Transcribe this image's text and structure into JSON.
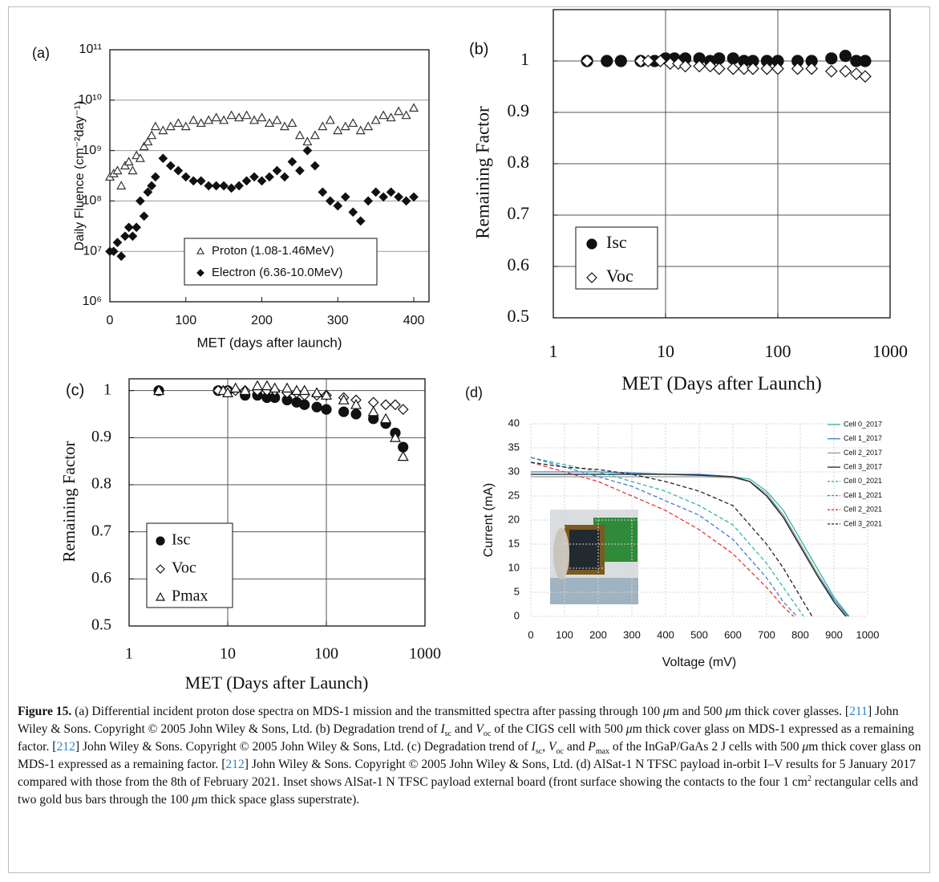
{
  "chart_data": [
    {
      "type": "scatter",
      "panel": "(a)",
      "xlabel": "MET (days after launch)",
      "ylabel": "Daily Fluence (cm⁻²day⁻¹)",
      "xlim": [
        0,
        420
      ],
      "xticks": [
        0,
        100,
        200,
        300,
        400
      ],
      "ylim": [
        1000000.0,
        100000000000.0
      ],
      "ylog": true,
      "yticks": [
        {
          "value": 1000000.0,
          "label": "10⁶"
        },
        {
          "value": 10000000.0,
          "label": "10⁷"
        },
        {
          "value": 100000000.0,
          "label": "10⁸"
        },
        {
          "value": 1000000000.0,
          "label": "10⁹"
        },
        {
          "value": 10000000000.0,
          "label": "10¹⁰"
        },
        {
          "value": 100000000000.0,
          "label": "10¹¹"
        }
      ],
      "grid": "y",
      "legend": "lower-center",
      "series": [
        {
          "name": "Proton (1.08-1.46MeV)",
          "marker": "triangle-open",
          "color": "#333333",
          "x": [
            0,
            5,
            10,
            15,
            20,
            25,
            30,
            35,
            40,
            45,
            50,
            55,
            60,
            70,
            80,
            90,
            100,
            110,
            120,
            130,
            140,
            150,
            160,
            170,
            180,
            190,
            200,
            210,
            220,
            230,
            240,
            250,
            260,
            270,
            280,
            290,
            300,
            310,
            320,
            330,
            340,
            350,
            360,
            370,
            380,
            390,
            400
          ],
          "values": [
            300000000.0,
            350000000.0,
            400000000.0,
            200000000.0,
            500000000.0,
            600000000.0,
            400000000.0,
            800000000.0,
            700000000.0,
            1200000000.0,
            1500000000.0,
            2000000000.0,
            3000000000.0,
            2500000000.0,
            3000000000.0,
            3500000000.0,
            3000000000.0,
            4000000000.0,
            3500000000.0,
            4000000000.0,
            4500000000.0,
            4000000000.0,
            5000000000.0,
            4500000000.0,
            5000000000.0,
            4000000000.0,
            4500000000.0,
            3500000000.0,
            4000000000.0,
            3000000000.0,
            3500000000.0,
            2000000000.0,
            1500000000.0,
            2000000000.0,
            3000000000.0,
            4000000000.0,
            2500000000.0,
            3000000000.0,
            3500000000.0,
            2500000000.0,
            3000000000.0,
            4000000000.0,
            5000000000.0,
            4500000000.0,
            6000000000.0,
            5000000000.0,
            7000000000.0
          ]
        },
        {
          "name": "Electron (6.36-10.0MeV)",
          "marker": "diamond",
          "color": "#111111",
          "x": [
            0,
            5,
            10,
            15,
            20,
            25,
            30,
            35,
            40,
            45,
            50,
            55,
            60,
            70,
            80,
            90,
            100,
            110,
            120,
            130,
            140,
            150,
            160,
            170,
            180,
            190,
            200,
            210,
            220,
            230,
            240,
            250,
            260,
            270,
            280,
            290,
            300,
            310,
            320,
            330,
            340,
            350,
            360,
            370,
            380,
            390,
            400
          ],
          "values": [
            10000000.0,
            10000000.0,
            15000000.0,
            8000000.0,
            20000000.0,
            30000000.0,
            20000000.0,
            30000000.0,
            100000000.0,
            50000000.0,
            150000000.0,
            200000000.0,
            300000000.0,
            700000000.0,
            500000000.0,
            400000000.0,
            300000000.0,
            250000000.0,
            250000000.0,
            200000000.0,
            200000000.0,
            200000000.0,
            180000000.0,
            200000000.0,
            250000000.0,
            300000000.0,
            250000000.0,
            300000000.0,
            400000000.0,
            300000000.0,
            600000000.0,
            400000000.0,
            1000000000.0,
            500000000.0,
            150000000.0,
            100000000.0,
            80000000.0,
            120000000.0,
            60000000.0,
            40000000.0,
            100000000.0,
            150000000.0,
            120000000.0,
            150000000.0,
            120000000.0,
            100000000.0,
            120000000.0
          ]
        }
      ]
    },
    {
      "type": "scatter",
      "panel": "(b)",
      "xlabel": "MET (Days after Launch)",
      "ylabel": "Remaining Factor",
      "xlim": [
        1,
        1000
      ],
      "xlog": true,
      "xticks": [
        1,
        10,
        100,
        1000
      ],
      "ylim": [
        0.5,
        1.1
      ],
      "yticks": [
        0.5,
        0.6,
        0.7,
        0.8,
        0.9,
        1
      ],
      "grid": "both",
      "legend": "lower-left",
      "series": [
        {
          "name": "Isc",
          "marker": "circle",
          "color": "#111111",
          "x": [
            2,
            3,
            4,
            6,
            8,
            10,
            12,
            15,
            20,
            25,
            30,
            40,
            50,
            60,
            80,
            100,
            150,
            200,
            300,
            400,
            500,
            600
          ],
          "values": [
            1,
            1,
            1,
            1,
            1,
            1.005,
            1.005,
            1.005,
            1.005,
            1,
            1.005,
            1.005,
            1,
            1,
            1,
            1,
            1,
            1,
            1.005,
            1.01,
            1,
            1
          ]
        },
        {
          "name": "Voc",
          "marker": "diamond-open",
          "color": "#111111",
          "x": [
            2,
            6,
            7,
            9,
            11,
            13,
            15,
            20,
            25,
            30,
            40,
            50,
            60,
            80,
            100,
            150,
            200,
            300,
            400,
            500,
            600
          ],
          "values": [
            1,
            1,
            1,
            1,
            0.995,
            0.995,
            0.99,
            0.99,
            0.99,
            0.985,
            0.985,
            0.985,
            0.985,
            0.985,
            0.985,
            0.985,
            0.985,
            0.98,
            0.98,
            0.975,
            0.97
          ]
        }
      ]
    },
    {
      "type": "scatter",
      "panel": "(c)",
      "xlabel": "MET (Days after Launch)",
      "ylabel": "Remaining Factor",
      "xlim": [
        1,
        1000
      ],
      "xlog": true,
      "xticks": [
        1,
        10,
        100,
        1000
      ],
      "ylim": [
        0.5,
        1.025
      ],
      "yticks": [
        0.5,
        0.6,
        0.7,
        0.8,
        0.9,
        1
      ],
      "grid": "both",
      "legend": "lower-left",
      "series": [
        {
          "name": "Isc",
          "marker": "circle",
          "color": "#111111",
          "x": [
            2,
            8,
            10,
            15,
            20,
            25,
            30,
            40,
            50,
            60,
            80,
            100,
            150,
            200,
            300,
            400,
            500,
            600
          ],
          "values": [
            1,
            1,
            1,
            0.99,
            0.99,
            0.985,
            0.985,
            0.98,
            0.975,
            0.97,
            0.965,
            0.96,
            0.955,
            0.95,
            0.94,
            0.93,
            0.91,
            0.88
          ]
        },
        {
          "name": "Voc",
          "marker": "diamond-open",
          "color": "#111111",
          "x": [
            8,
            10,
            12,
            15,
            20,
            25,
            30,
            40,
            50,
            60,
            80,
            100,
            150,
            200,
            300,
            400,
            500,
            600
          ],
          "values": [
            1,
            1,
            1,
            1,
            1,
            1,
            1,
            0.995,
            0.995,
            0.99,
            0.99,
            0.99,
            0.985,
            0.98,
            0.975,
            0.97,
            0.97,
            0.96
          ]
        },
        {
          "name": "Pmax",
          "marker": "triangle-open",
          "color": "#111111",
          "x": [
            2,
            9,
            10,
            12,
            15,
            20,
            25,
            30,
            40,
            50,
            60,
            80,
            100,
            150,
            200,
            300,
            400,
            500,
            600
          ],
          "values": [
            1,
            1,
            0.995,
            1.005,
            1,
            1.01,
            1.01,
            1.005,
            1.005,
            1,
            1,
            0.995,
            0.99,
            0.98,
            0.97,
            0.955,
            0.94,
            0.9,
            0.86
          ]
        }
      ]
    },
    {
      "type": "line",
      "panel": "(d)",
      "xlabel": "Voltage (mV)",
      "ylabel": "Current (mA)",
      "xlim": [
        0,
        1000
      ],
      "xticks": [
        0,
        100,
        200,
        300,
        400,
        500,
        600,
        700,
        800,
        900,
        1000
      ],
      "ylim": [
        0,
        40
      ],
      "yticks": [
        0,
        5,
        10,
        15,
        20,
        25,
        30,
        35,
        40
      ],
      "grid": "both",
      "legend": "upper-right",
      "series": [
        {
          "name": "Cell 0_2017",
          "color": "#33b8a5",
          "dash": false,
          "x": [
            0,
            100,
            200,
            300,
            400,
            500,
            600,
            650,
            700,
            750,
            800,
            850,
            900,
            945
          ],
          "values": [
            29.5,
            29.5,
            29.5,
            29.5,
            29.5,
            29.5,
            29,
            28.5,
            26,
            22,
            16,
            10,
            4,
            0
          ]
        },
        {
          "name": "Cell 1_2017",
          "color": "#3f7fcf",
          "dash": false,
          "x": [
            0,
            100,
            200,
            300,
            400,
            500,
            600,
            650,
            700,
            750,
            800,
            850,
            900,
            942
          ],
          "values": [
            30,
            30,
            30,
            29.8,
            29.5,
            29.5,
            29,
            28,
            25,
            21,
            15,
            9,
            3.5,
            0
          ]
        },
        {
          "name": "Cell 2_2017",
          "color": "#999999",
          "dash": false,
          "x": [
            0,
            100,
            200,
            300,
            400,
            500,
            600,
            650,
            700,
            750,
            800,
            850,
            900,
            938
          ],
          "values": [
            29,
            29,
            29,
            29,
            29,
            29,
            28.8,
            28,
            25.5,
            21,
            15,
            9,
            3,
            0
          ]
        },
        {
          "name": "Cell 3_2017",
          "color": "#222222",
          "dash": false,
          "x": [
            0,
            100,
            200,
            300,
            400,
            500,
            600,
            650,
            700,
            750,
            800,
            850,
            900,
            935
          ],
          "values": [
            29.5,
            29.5,
            29.5,
            29.5,
            29.5,
            29.3,
            29,
            28,
            25,
            20.5,
            14.5,
            8.5,
            3,
            0
          ]
        },
        {
          "name": "Cell 0_2021",
          "color": "#33b8a5",
          "dash": true,
          "x": [
            0,
            100,
            200,
            300,
            400,
            500,
            600,
            700,
            750,
            810
          ],
          "values": [
            33,
            31.5,
            30,
            28,
            26,
            23,
            19,
            11,
            6,
            0
          ]
        },
        {
          "name": "Cell 1_2021",
          "color": "#3f7fcf",
          "dash": true,
          "x": [
            0,
            100,
            200,
            300,
            400,
            500,
            600,
            700,
            750,
            790
          ],
          "values": [
            33,
            31,
            29,
            27,
            24,
            21,
            16,
            8,
            3,
            0
          ]
        },
        {
          "name": "Cell 2_2021",
          "color": "#e0393a",
          "dash": true,
          "x": [
            0,
            100,
            200,
            300,
            400,
            500,
            600,
            700,
            750,
            780
          ],
          "values": [
            32,
            30,
            28,
            25,
            22,
            18,
            13,
            6,
            2,
            0
          ]
        },
        {
          "name": "Cell 3_2021",
          "color": "#222222",
          "dash": true,
          "x": [
            0,
            100,
            200,
            300,
            400,
            500,
            600,
            700,
            750,
            835
          ],
          "values": [
            32,
            31,
            30.5,
            29.5,
            28,
            26,
            23,
            15,
            10,
            0
          ]
        }
      ]
    }
  ],
  "caption": [
    {
      "t": "Figure 15.",
      "s": "b"
    },
    {
      "t": " (a) Differential incident proton dose spectra on MDS-1 mission and the transmitted spectra after passing through 100 "
    },
    {
      "t": "μ",
      "s": "i"
    },
    {
      "t": "m and 500 "
    },
    {
      "t": "μ",
      "s": "i"
    },
    {
      "t": "m thick cover glasses. ["
    },
    {
      "t": "211",
      "s": "link"
    },
    {
      "t": "] John Wiley & Sons. Copyright © 2005 John Wiley & Sons, Ltd. (b) Degradation trend of "
    },
    {
      "t": "I",
      "s": "i"
    },
    {
      "t": "sc",
      "s": "sub"
    },
    {
      "t": " and "
    },
    {
      "t": "V",
      "s": "i"
    },
    {
      "t": "oc",
      "s": "sub"
    },
    {
      "t": " of the CIGS cell with 500 "
    },
    {
      "t": "μ",
      "s": "i"
    },
    {
      "t": "m thick cover glass on MDS-1 expressed as a remaining factor. ["
    },
    {
      "t": "212",
      "s": "link"
    },
    {
      "t": "] John Wiley & Sons. Copyright © 2005 John Wiley & Sons, Ltd. (c) Degradation trend of "
    },
    {
      "t": "I",
      "s": "i"
    },
    {
      "t": "sc",
      "s": "sub"
    },
    {
      "t": ", "
    },
    {
      "t": "V",
      "s": "i"
    },
    {
      "t": "oc",
      "s": "sub"
    },
    {
      "t": " and "
    },
    {
      "t": "P",
      "s": "i"
    },
    {
      "t": "max",
      "s": "sub"
    },
    {
      "t": " of the InGaP/GaAs 2 J cells with 500 "
    },
    {
      "t": "μ",
      "s": "i"
    },
    {
      "t": "m thick cover glass on MDS-1 expressed as a remaining factor. ["
    },
    {
      "t": "212",
      "s": "link"
    },
    {
      "t": "] John Wiley & Sons. Copyright © 2005 John Wiley & Sons, Ltd. (d) AlSat-1 N TFSC payload in-orbit I–V results for 5 January 2017 compared with those from the 8th of February 2021. Inset shows AlSat-1 N TFSC payload external board (front surface showing the contacts to the four 1 cm"
    },
    {
      "t": "2",
      "s": "sup"
    },
    {
      "t": " rectangular cells and two gold bus bars through the 100 "
    },
    {
      "t": "μ",
      "s": "i"
    },
    {
      "t": "m thick space glass superstrate)."
    }
  ]
}
